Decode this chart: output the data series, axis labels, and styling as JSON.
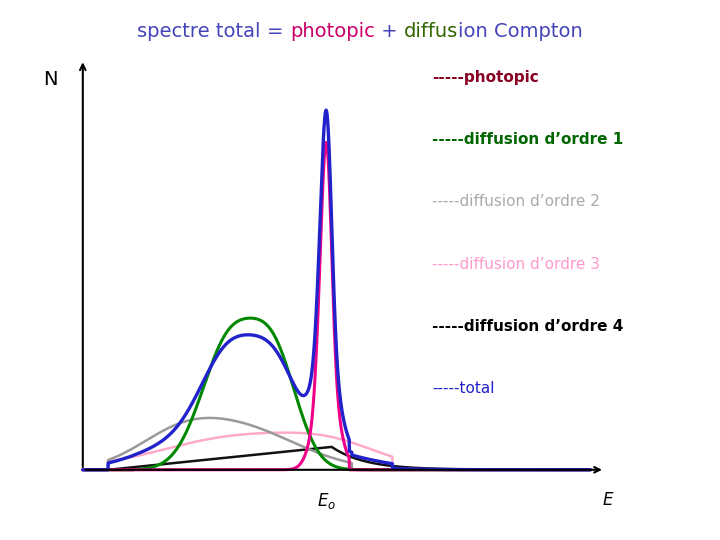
{
  "title_parts": [
    {
      "text": "spectre total ",
      "color": "#4444bb"
    },
    {
      "text": "= ",
      "color": "#4444bb"
    },
    {
      "text": "photopic",
      "color": "#cc0066"
    },
    {
      "text": " + ",
      "color": "#4444bb"
    },
    {
      "text": "diffus",
      "color": "#336600"
    },
    {
      "text": "ion Compton",
      "color": "#4444bb"
    }
  ],
  "bg_color": "#ffffff",
  "legend_entries": [
    {
      "label": "-----photopic",
      "color": "#880022"
    },
    {
      "label": "-----diffusion d’ordre 1",
      "color": "#006600"
    },
    {
      "label": "-----diffusion d’ordre 2",
      "color": "#aaaaaa"
    },
    {
      "label": "-----diffusion d’ordre 3",
      "color": "#ff99cc"
    },
    {
      "label": "-----diffusion d’ordre 4",
      "color": "#000000"
    },
    {
      "label": "-----total",
      "color": "#2222cc"
    }
  ],
  "line_colors": {
    "photopic": "#ee0088",
    "order1": "#008800",
    "order2": "#999999",
    "order3": "#ffaacc",
    "order4": "#111111",
    "total": "#2222cc"
  },
  "axis_color": "#000000",
  "n_label_color": "#000000",
  "title_fontsize": 14,
  "legend_fontsize": 11,
  "n_label_fontsize": 14
}
